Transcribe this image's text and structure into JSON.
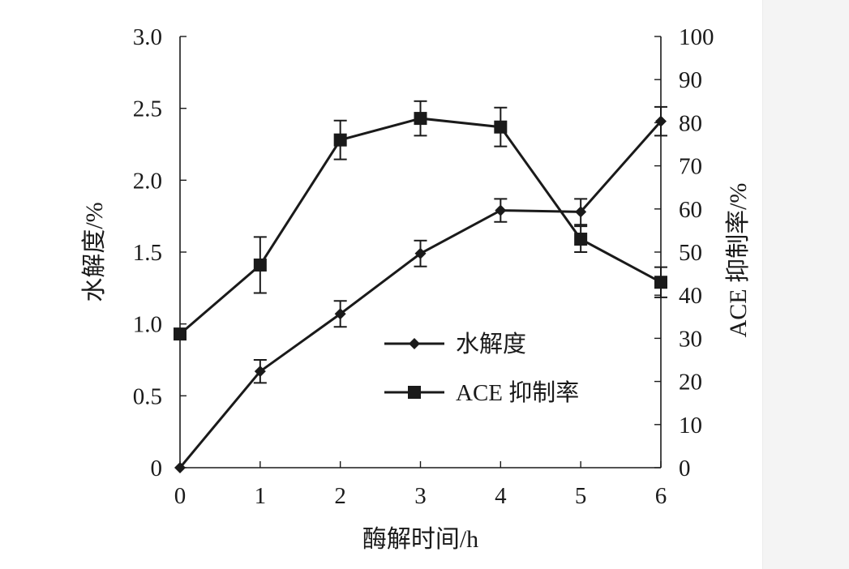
{
  "chart_data": {
    "type": "line",
    "title": "",
    "xlabel": "酶解时间/h",
    "ylabel_left": "水解度/%",
    "ylabel_right": "ACE 抑制率/%",
    "x": [
      0,
      1,
      2,
      3,
      4,
      5,
      6
    ],
    "x_ticks": [
      "0",
      "1",
      "2",
      "3",
      "4",
      "5",
      "6"
    ],
    "ylim_left": [
      0,
      3.0
    ],
    "y_ticks_left": [
      "0",
      "0.5",
      "1.0",
      "1.5",
      "2.0",
      "2.5",
      "3.0"
    ],
    "ylim_right": [
      0,
      100
    ],
    "y_ticks_right": [
      "0",
      "10",
      "20",
      "30",
      "40",
      "50",
      "60",
      "70",
      "80",
      "90",
      "100"
    ],
    "grid": false,
    "legend_position": "center-right",
    "series": [
      {
        "name": "水解度",
        "axis": "left",
        "marker": "diamond",
        "color": "#1a1a1a",
        "values": [
          0,
          0.67,
          1.07,
          1.49,
          1.79,
          1.78,
          2.41
        ],
        "errors": [
          0,
          0.08,
          0.09,
          0.09,
          0.08,
          0.09,
          0.1
        ]
      },
      {
        "name": "ACE 抑制率",
        "axis": "right",
        "marker": "square",
        "color": "#1a1a1a",
        "values": [
          31,
          47,
          76,
          81,
          79,
          53,
          43
        ],
        "errors": [
          0,
          6.5,
          4.5,
          4.0,
          4.5,
          3.0,
          3.5
        ]
      }
    ]
  }
}
